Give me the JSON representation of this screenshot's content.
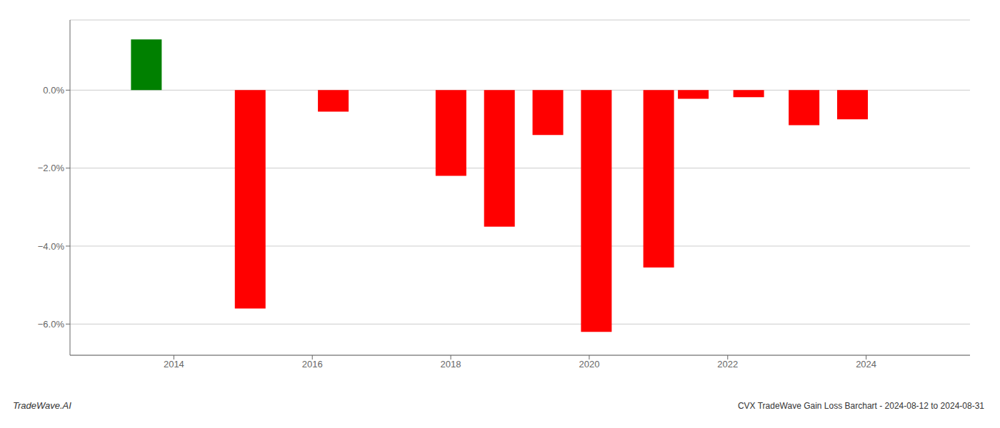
{
  "chart_data": {
    "type": "bar",
    "title": "CVX TradeWave Gain Loss Barchart - 2024-08-12 to 2024-08-31",
    "annotations": [
      "TradeWave.AI"
    ],
    "x": [
      2013.6,
      2015.1,
      2016.3,
      2018.0,
      2018.7,
      2019.4,
      2020.1,
      2021.0,
      2021.5,
      2022.3,
      2023.1,
      2023.8
    ],
    "values": [
      1.3,
      -5.6,
      -0.55,
      -2.2,
      -3.5,
      -1.15,
      -6.2,
      -4.55,
      -0.22,
      -0.18,
      -0.9,
      -0.75
    ],
    "colors": [
      "#008000",
      "#ff0000",
      "#ff0000",
      "#ff0000",
      "#ff0000",
      "#ff0000",
      "#ff0000",
      "#ff0000",
      "#ff0000",
      "#ff0000",
      "#ff0000",
      "#ff0000"
    ],
    "xlim": [
      2012.5,
      2025.5
    ],
    "ylim": [
      -6.8,
      1.8
    ],
    "xticks": [
      2014,
      2016,
      2018,
      2020,
      2022,
      2024
    ],
    "yticks": [
      {
        "value": 0.0,
        "label": "0.0%"
      },
      {
        "value": -2.0,
        "label": "−2.0%"
      },
      {
        "value": -4.0,
        "label": "−4.0%"
      },
      {
        "value": -6.0,
        "label": "−6.0%"
      }
    ],
    "grid": true
  }
}
